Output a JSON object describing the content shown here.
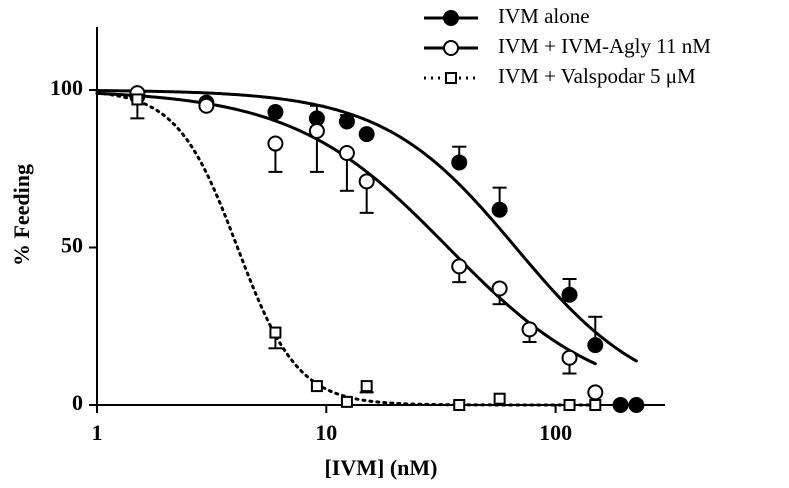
{
  "chart_data": {
    "type": "scatter",
    "xlabel": "[IVM] (nM)",
    "ylabel": "% Feeding",
    "xscale": "log",
    "xlim": [
      1,
      300
    ],
    "xticks": [
      1,
      10,
      100
    ],
    "ylim": [
      0,
      120
    ],
    "yticks": [
      0,
      50,
      100
    ],
    "legend": "upper right",
    "series": [
      {
        "name": "IVM alone",
        "color": "#000000",
        "marker": "circle-filled",
        "line_style": "solid",
        "error_direction": "up",
        "x": [
          1.5,
          3.0,
          6.0,
          9.1,
          12.3,
          15,
          38,
          57,
          115,
          149,
          192,
          225
        ],
        "values": [
          98,
          96,
          93,
          91,
          90,
          86,
          77,
          62,
          35,
          19,
          0,
          0
        ],
        "errors": [
          null,
          null,
          null,
          4,
          2,
          null,
          5,
          7,
          5,
          9,
          null,
          null
        ],
        "fit": {
          "top": 100,
          "bottom": 0,
          "ic50": 67,
          "hill": 1.5
        }
      },
      {
        "name": "IVM + IVM-Agly 11 nM",
        "color": "#000000",
        "marker": "circle-open",
        "line_style": "solid",
        "error_direction": "down",
        "x": [
          1.5,
          3.0,
          6.0,
          9.1,
          12.3,
          15,
          38,
          57,
          77,
          115,
          149
        ],
        "values": [
          99,
          95,
          83,
          87,
          80,
          71,
          44,
          37,
          24,
          15,
          4
        ],
        "errors": [
          null,
          null,
          9,
          13,
          12,
          10,
          5,
          5,
          4,
          5,
          null
        ],
        "fit": {
          "top": 100,
          "bottom": 0,
          "ic50": 34,
          "hill": 1.28
        }
      },
      {
        "name": "IVM + Valspodar 5 μM",
        "color": "#000000",
        "marker": "square-open",
        "line_style": "dotted",
        "error_direction": "down",
        "x": [
          1.5,
          6.0,
          9.1,
          12.3,
          15,
          38,
          57,
          115,
          149
        ],
        "values": [
          97,
          23,
          6,
          1,
          6,
          0,
          2,
          0,
          0
        ],
        "errors": [
          6,
          5,
          null,
          null,
          2,
          null,
          null,
          null,
          null
        ],
        "fit": {
          "top": 100,
          "bottom": 0,
          "ic50": 4.1,
          "hill": 3.3
        }
      }
    ]
  }
}
